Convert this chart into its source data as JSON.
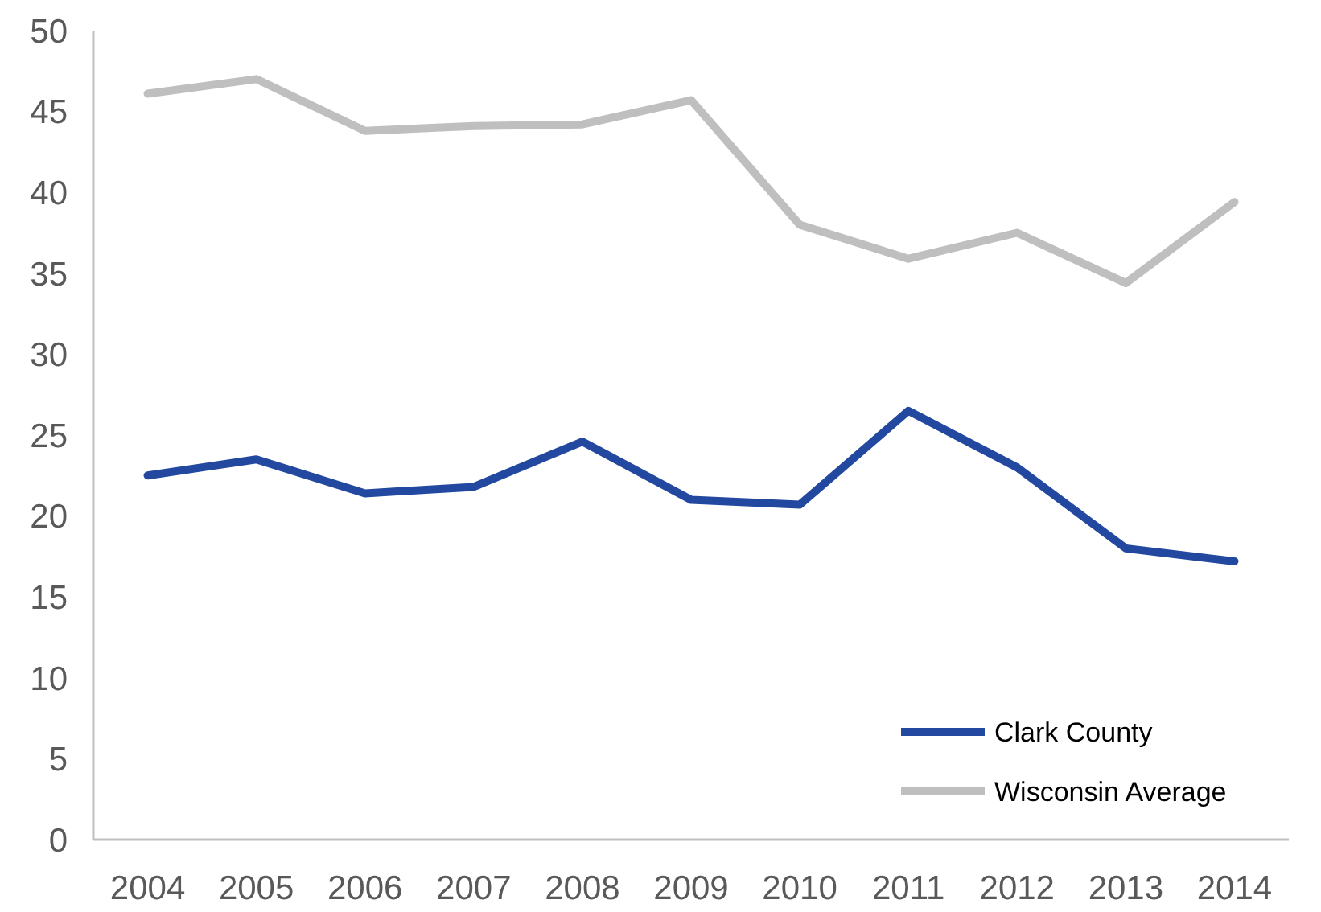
{
  "chart_data": {
    "type": "line",
    "categories": [
      "2004",
      "2005",
      "2006",
      "2007",
      "2008",
      "2009",
      "2010",
      "2011",
      "2012",
      "2013",
      "2014"
    ],
    "series": [
      {
        "name": "Clark County",
        "color": "#2348a0",
        "values": [
          22.5,
          23.5,
          21.4,
          21.8,
          24.6,
          21.0,
          20.7,
          26.5,
          23.0,
          18.0,
          17.2
        ]
      },
      {
        "name": "Wisconsin Average",
        "color": "#bfbfbf",
        "values": [
          46.1,
          47.0,
          43.8,
          44.1,
          44.2,
          45.7,
          38.0,
          35.9,
          37.5,
          34.4,
          39.4
        ]
      }
    ],
    "ylim": [
      0,
      50
    ],
    "yticks": [
      0,
      5,
      10,
      15,
      20,
      25,
      30,
      35,
      40,
      45,
      50
    ],
    "grid": false,
    "legend": "bottom right",
    "marker": "none",
    "line_style": "solid"
  }
}
